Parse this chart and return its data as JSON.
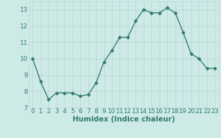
{
  "x": [
    0,
    1,
    2,
    3,
    4,
    5,
    6,
    7,
    8,
    9,
    10,
    11,
    12,
    13,
    14,
    15,
    16,
    17,
    18,
    19,
    20,
    21,
    22,
    23
  ],
  "y": [
    10.0,
    8.6,
    7.5,
    7.9,
    7.9,
    7.9,
    7.7,
    7.8,
    8.5,
    9.8,
    10.5,
    11.3,
    11.3,
    12.3,
    13.0,
    12.8,
    12.8,
    13.1,
    12.8,
    11.6,
    10.3,
    10.0,
    9.4,
    9.4
  ],
  "line_color": "#2e7b6f",
  "marker_color": "#2e7b6f",
  "bg_color": "#ceeae7",
  "grid_color": "#b8d8d5",
  "xlabel": "Humidex (Indice chaleur)",
  "xlim": [
    -0.5,
    23.5
  ],
  "ylim": [
    7.0,
    13.5
  ],
  "yticks": [
    7,
    8,
    9,
    10,
    11,
    12,
    13
  ],
  "xticks": [
    0,
    1,
    2,
    3,
    4,
    5,
    6,
    7,
    8,
    9,
    10,
    11,
    12,
    13,
    14,
    15,
    16,
    17,
    18,
    19,
    20,
    21,
    22,
    23
  ],
  "tick_labelsize": 6.5,
  "xlabel_fontsize": 7.5,
  "marker_size": 2.5,
  "linewidth": 1.0
}
